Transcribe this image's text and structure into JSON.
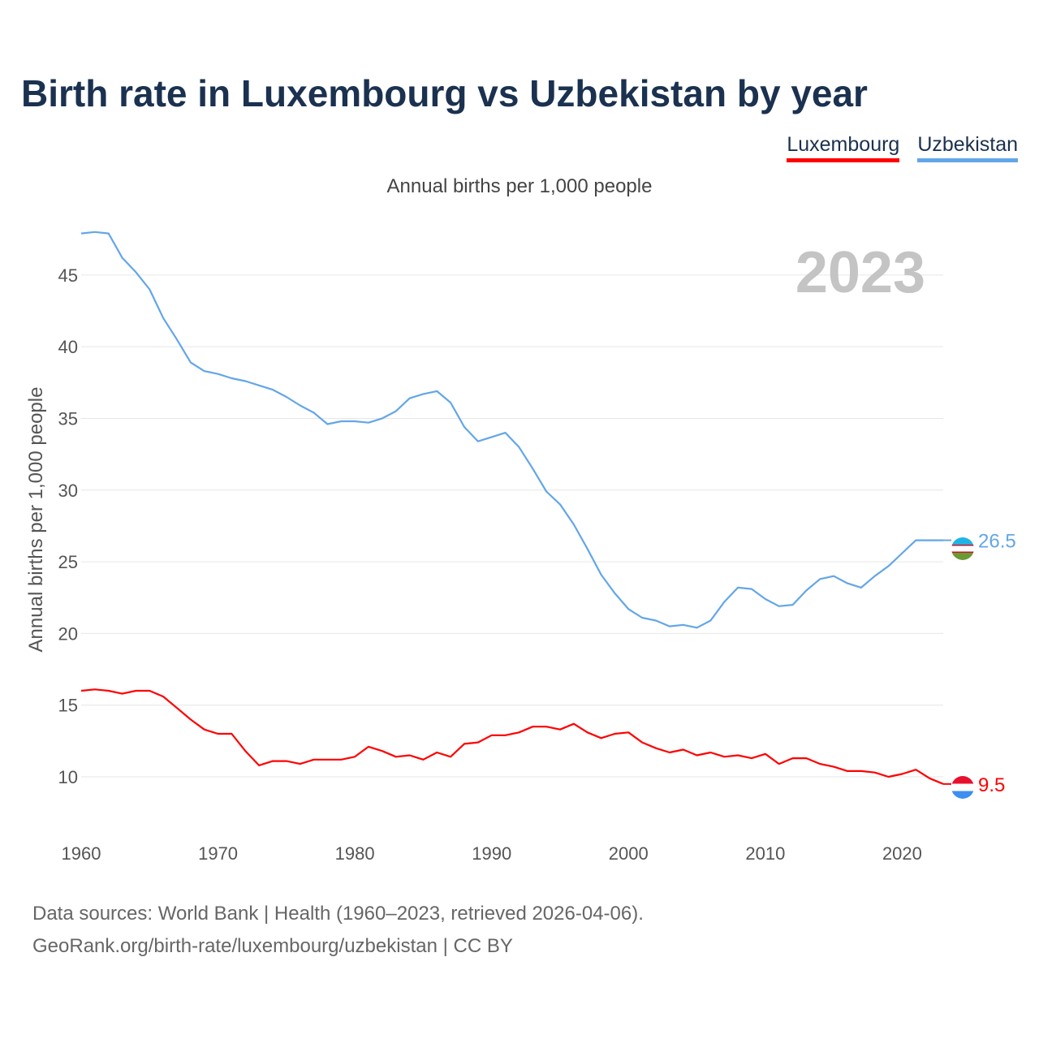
{
  "header": {
    "title": "Birth rate in Luxembourg vs Uzbekistan by year",
    "subtitle": "Annual births per 1,000 people"
  },
  "legend": {
    "luxembourg": "Luxembourg",
    "uzbekistan": "Uzbekistan"
  },
  "footer": {
    "line1": "Data sources: World Bank | Health (1960–2023, retrieved 2026-04-06).",
    "line2": "GeoRank.org/birth-rate/luxembourg/uzbekistan | CC BY"
  },
  "chart_data": {
    "type": "line",
    "title": "Birth rate in Luxembourg vs Uzbekistan by year",
    "subtitle": "Annual births per 1,000 people",
    "xlabel": "",
    "ylabel": "Annual births per 1,000 people",
    "year_label": "2023",
    "xlim": [
      1960,
      2023
    ],
    "ylim": [
      7,
      48.5
    ],
    "x_ticks": [
      1960,
      1970,
      1980,
      1990,
      2000,
      2010,
      2020
    ],
    "y_ticks": [
      10,
      15,
      20,
      25,
      30,
      35,
      40,
      45
    ],
    "x": [
      1960,
      1961,
      1962,
      1963,
      1964,
      1965,
      1966,
      1967,
      1968,
      1969,
      1970,
      1971,
      1972,
      1973,
      1974,
      1975,
      1976,
      1977,
      1978,
      1979,
      1980,
      1981,
      1982,
      1983,
      1984,
      1985,
      1986,
      1987,
      1988,
      1989,
      1990,
      1991,
      1992,
      1993,
      1994,
      1995,
      1996,
      1997,
      1998,
      1999,
      2000,
      2001,
      2002,
      2003,
      2004,
      2005,
      2006,
      2007,
      2008,
      2009,
      2010,
      2011,
      2012,
      2013,
      2014,
      2015,
      2016,
      2017,
      2018,
      2019,
      2020,
      2021,
      2022,
      2023
    ],
    "series": [
      {
        "name": "Uzbekistan",
        "color": "#63a6e8",
        "end_label": "26.5",
        "values": [
          47.9,
          48.0,
          47.9,
          46.2,
          45.2,
          44.0,
          42.0,
          40.5,
          38.9,
          38.3,
          38.1,
          37.8,
          37.6,
          37.3,
          37.0,
          36.5,
          35.9,
          35.4,
          34.6,
          34.8,
          34.8,
          34.7,
          35.0,
          35.5,
          36.4,
          36.7,
          36.9,
          36.1,
          34.4,
          33.4,
          33.7,
          34.0,
          33.0,
          31.5,
          29.9,
          29.0,
          27.6,
          25.9,
          24.1,
          22.8,
          21.7,
          21.1,
          20.9,
          20.5,
          20.6,
          20.4,
          20.9,
          22.2,
          23.2,
          23.1,
          22.4,
          21.9,
          22.0,
          23.0,
          23.8,
          24.0,
          23.5,
          23.2,
          24.0,
          24.7,
          25.6,
          26.5,
          26.5,
          26.5
        ]
      },
      {
        "name": "Luxembourg",
        "color": "#ff0000",
        "end_label": "9.5",
        "values": [
          16.0,
          16.1,
          16.0,
          15.8,
          16.0,
          16.0,
          15.6,
          14.8,
          14.0,
          13.3,
          13.0,
          13.0,
          11.8,
          10.8,
          11.1,
          11.1,
          10.9,
          11.2,
          11.2,
          11.2,
          11.4,
          12.1,
          11.8,
          11.4,
          11.5,
          11.2,
          11.7,
          11.4,
          12.3,
          12.4,
          12.9,
          12.9,
          13.1,
          13.5,
          13.5,
          13.3,
          13.7,
          13.1,
          12.7,
          13.0,
          13.1,
          12.4,
          12.0,
          11.7,
          11.9,
          11.5,
          11.7,
          11.4,
          11.5,
          11.3,
          11.6,
          10.9,
          11.3,
          11.3,
          10.9,
          10.7,
          10.4,
          10.4,
          10.3,
          10.0,
          10.2,
          10.5,
          9.9,
          9.5
        ]
      }
    ]
  }
}
